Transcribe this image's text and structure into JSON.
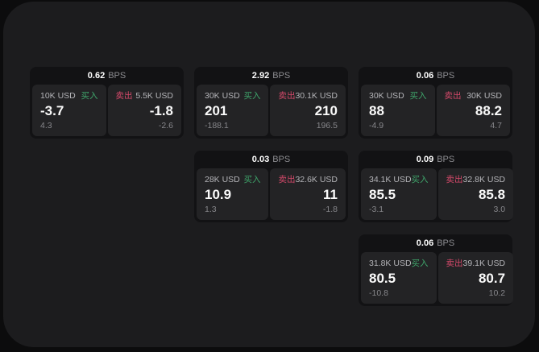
{
  "labels": {
    "bps_unit": "BPS",
    "buy": "买入",
    "sell": "卖出"
  },
  "colors": {
    "buy": "#3fa56b",
    "sell": "#d4496a",
    "window_bg": "#1c1c1e",
    "card_bg": "#121214",
    "panel_bg": "#232325"
  },
  "cards": [
    {
      "row": 1,
      "col": 1,
      "bps": "0.62",
      "buy": {
        "notional": "10K USD",
        "price": "-3.7",
        "delta": "4.3"
      },
      "sell": {
        "notional": "5.5K USD",
        "price": "-1.8",
        "delta": "-2.6"
      }
    },
    {
      "row": 1,
      "col": 2,
      "bps": "2.92",
      "buy": {
        "notional": "30K USD",
        "price": "201",
        "delta": "-188.1"
      },
      "sell": {
        "notional": "30.1K USD",
        "price": "210",
        "delta": "196.5"
      }
    },
    {
      "row": 1,
      "col": 3,
      "bps": "0.06",
      "buy": {
        "notional": "30K USD",
        "price": "88",
        "delta": "-4.9"
      },
      "sell": {
        "notional": "30K USD",
        "price": "88.2",
        "delta": "4.7"
      }
    },
    {
      "row": 2,
      "col": 2,
      "bps": "0.03",
      "buy": {
        "notional": "28K USD",
        "price": "10.9",
        "delta": "1.3"
      },
      "sell": {
        "notional": "32.6K USD",
        "price": "11",
        "delta": "-1.8"
      }
    },
    {
      "row": 2,
      "col": 3,
      "bps": "0.09",
      "buy": {
        "notional": "34.1K USD",
        "price": "85.5",
        "delta": "-3.1"
      },
      "sell": {
        "notional": "32.8K USD",
        "price": "85.8",
        "delta": "3.0"
      }
    },
    {
      "row": 3,
      "col": 3,
      "bps": "0.06",
      "buy": {
        "notional": "31.8K USD",
        "price": "80.5",
        "delta": "-10.8"
      },
      "sell": {
        "notional": "39.1K USD",
        "price": "80.7",
        "delta": "10.2"
      }
    }
  ]
}
